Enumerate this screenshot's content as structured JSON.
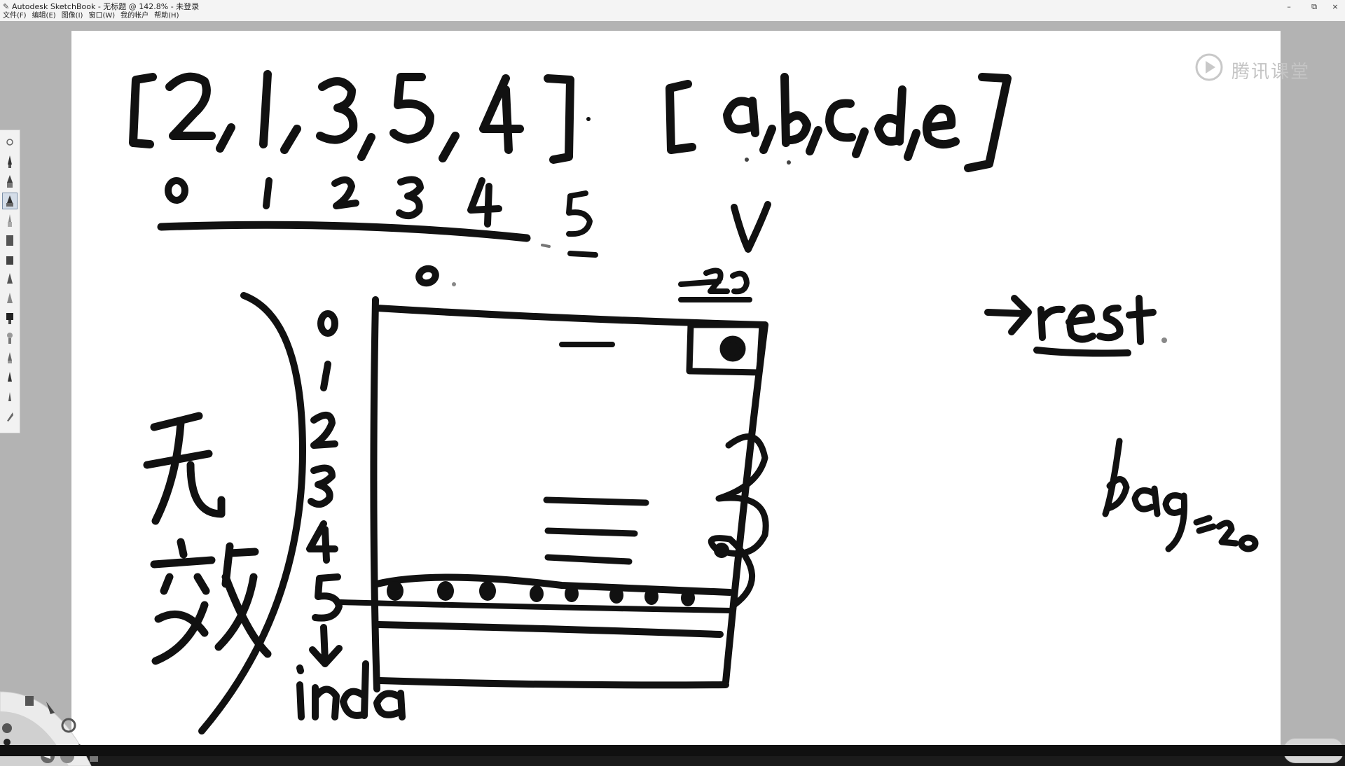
{
  "window": {
    "title": "Autodesk SketchBook - 无标题 @ 142.8% - 未登录",
    "controls": {
      "minimize": "–",
      "restore": "⧉",
      "close": "×"
    }
  },
  "menu": [
    {
      "label": "文件(F)"
    },
    {
      "label": "编辑(E)"
    },
    {
      "label": "图像(I)"
    },
    {
      "label": "窗口(W)"
    },
    {
      "label": "我的帐户"
    },
    {
      "label": "帮助(H)"
    }
  ],
  "watermark": {
    "text": "腾讯课堂",
    "icon": "play-icon"
  },
  "toolbar": {
    "tools": [
      {
        "name": "tool-settings-icon",
        "active": false
      },
      {
        "name": "pencil-icon",
        "active": false
      },
      {
        "name": "pen-icon",
        "active": false
      },
      {
        "name": "ballpoint-pen-icon",
        "active": true
      },
      {
        "name": "brush-icon",
        "active": false
      },
      {
        "name": "marker-icon",
        "active": false
      },
      {
        "name": "airbrush-icon",
        "active": false
      },
      {
        "name": "chisel-icon",
        "active": false
      },
      {
        "name": "smudge-icon",
        "active": false
      },
      {
        "name": "ink-icon",
        "active": false
      },
      {
        "name": "fill-brush-icon",
        "active": false
      },
      {
        "name": "eraser-icon",
        "active": false
      },
      {
        "name": "blur-icon",
        "active": false
      },
      {
        "name": "sharpen-icon",
        "active": false
      },
      {
        "name": "calligraphy-icon",
        "active": false
      }
    ]
  },
  "colors": {
    "paper": "#ffffff",
    "canvas_background": "#b3b3b3",
    "ink": "#111111",
    "titlebar": "#f4f4f4",
    "watermark": "#c4c4c4"
  },
  "drawing": {
    "array_values": [
      "[",
      "2",
      ",",
      "1",
      ",",
      "3",
      ",",
      "5",
      ",",
      "4",
      "]"
    ],
    "letters": [
      "[",
      "a",
      ",",
      "b",
      ",",
      "c",
      ",",
      "d",
      ",",
      "e",
      "]"
    ],
    "index_numbers": [
      "0",
      "1",
      "2",
      "3",
      "4",
      "5"
    ],
    "index_label": "inda",
    "left_note": "无效",
    "arrow_note": "→rest",
    "bag_note": "bag=20",
    "capacity_label": "20",
    "v_label": "v",
    "top_zero": "0"
  }
}
